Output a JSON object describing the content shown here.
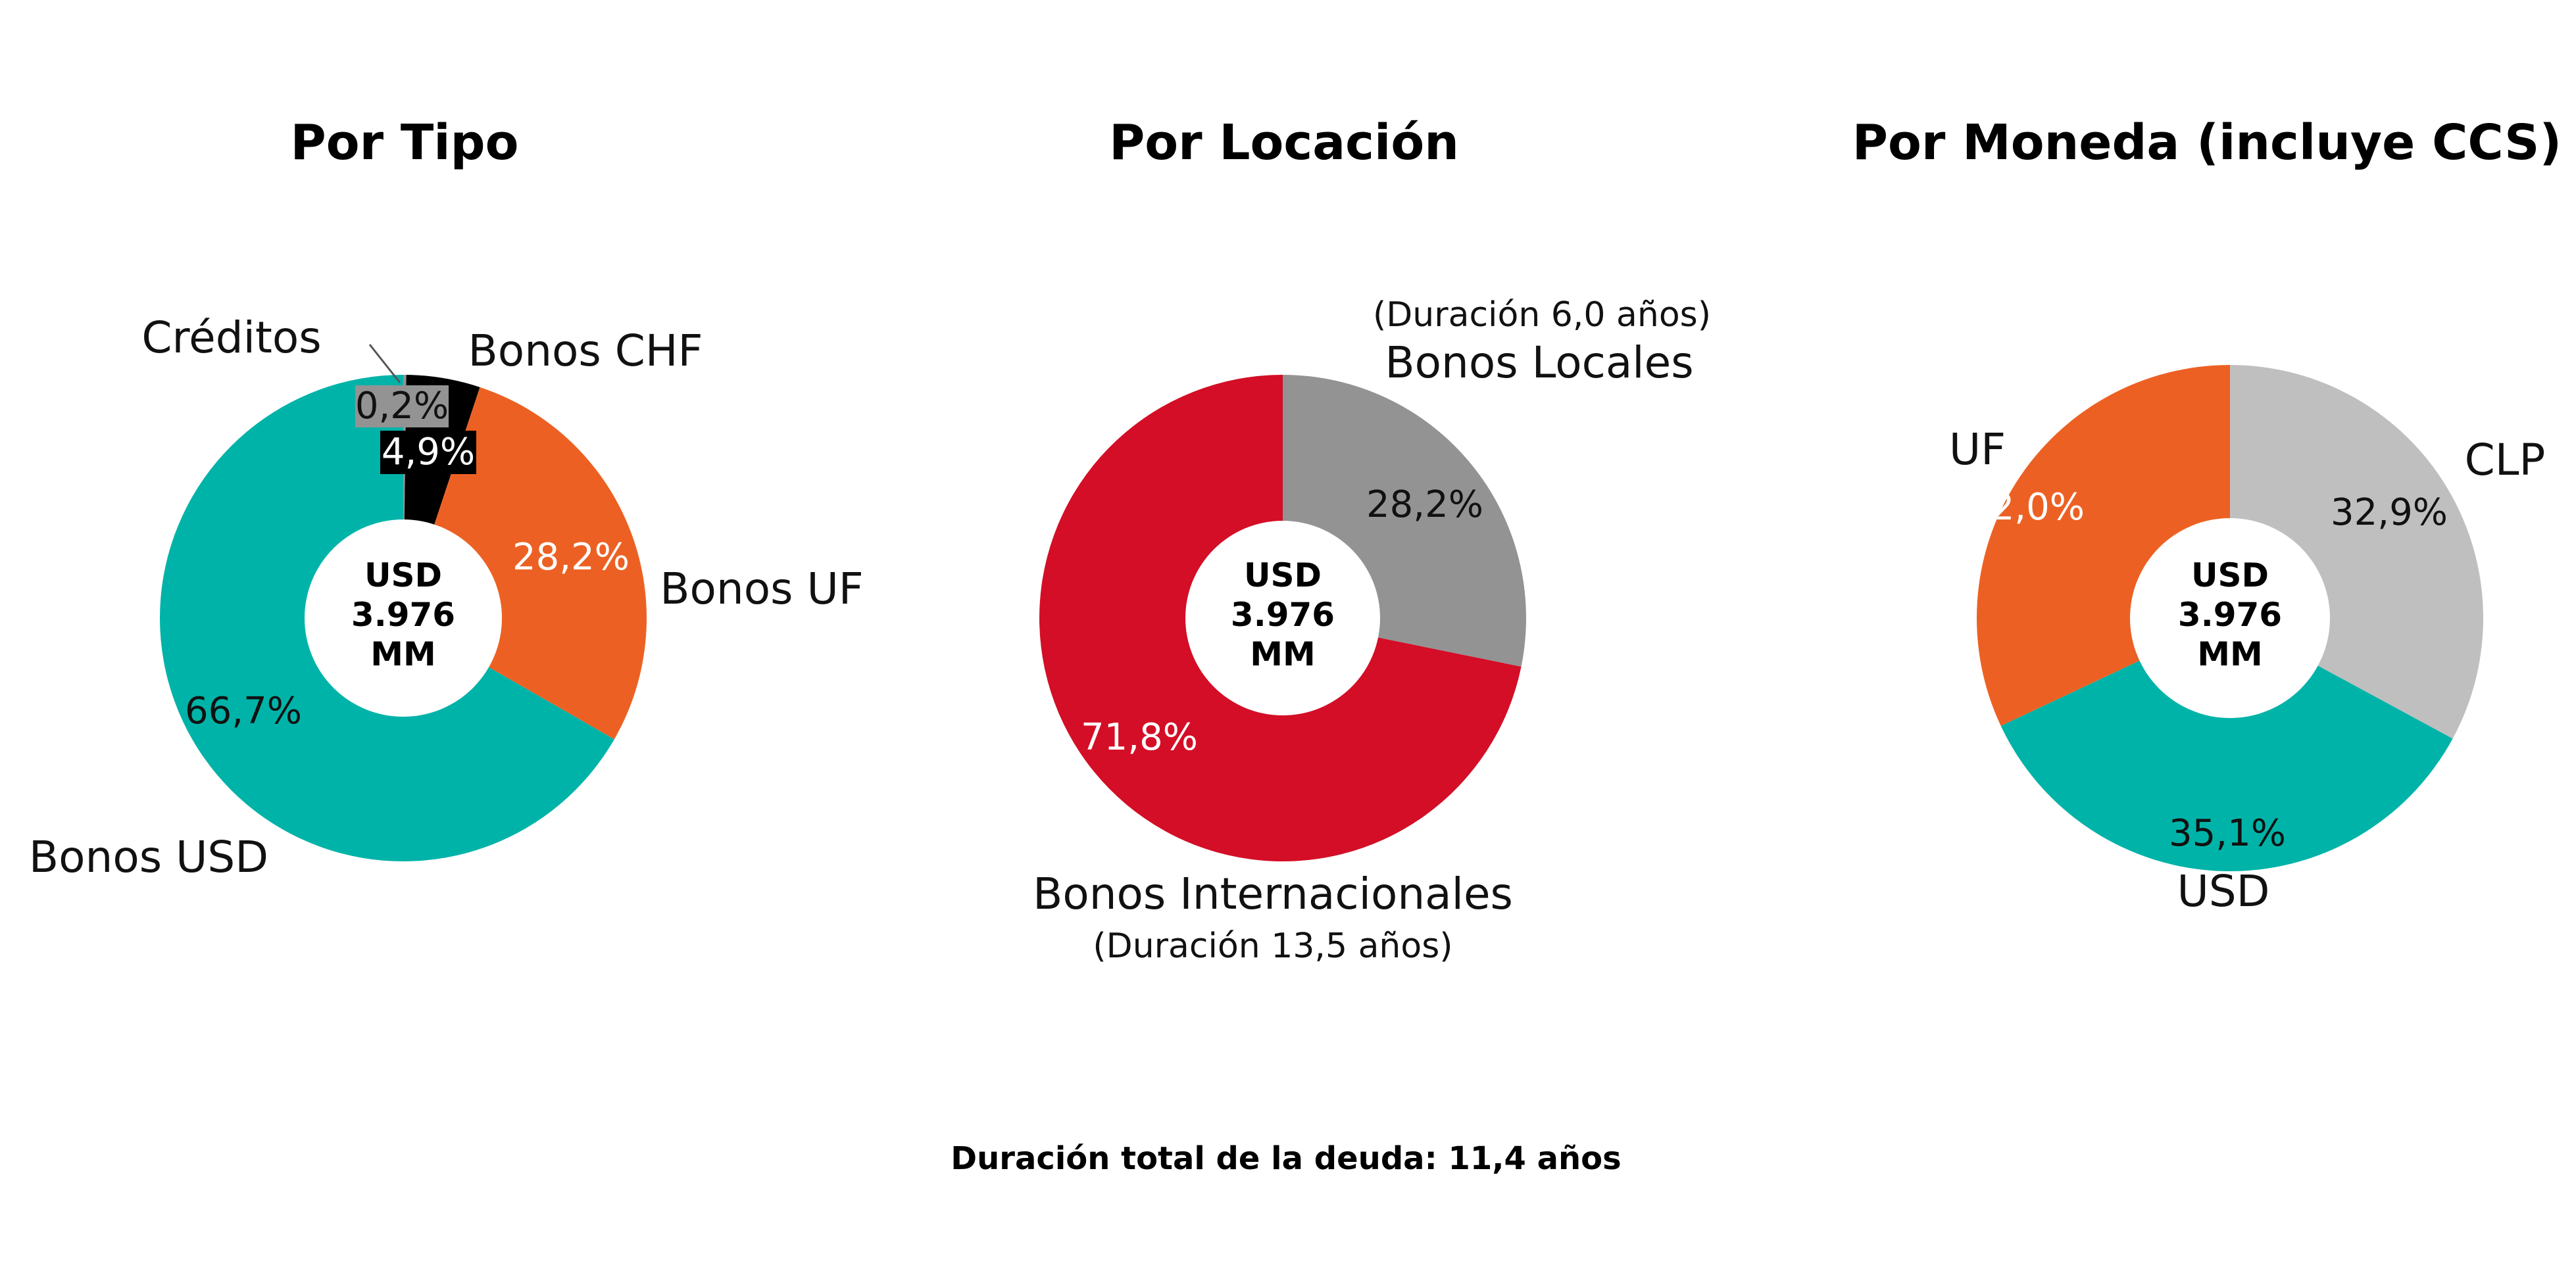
{
  "center_text": {
    "line1": "USD",
    "line2": "3.976",
    "line3": "MM"
  },
  "footer": "Duración total de la deuda: 11,4 años",
  "colors": {
    "teal": "#00B3A8",
    "orange": "#EC6123",
    "black": "#000000",
    "gray": "#939393",
    "red": "#D30E26",
    "lightgray": "#BFBFBF"
  },
  "chart_data": [
    {
      "type": "pie",
      "title": "Por Tipo",
      "donut": true,
      "slices": [
        {
          "label": "Créditos",
          "value": 0.2,
          "value_label": "0,2%",
          "color": "#939393"
        },
        {
          "label": "Bonos CHF",
          "value": 4.9,
          "value_label": "4,9%",
          "color": "#000000"
        },
        {
          "label": "Bonos UF",
          "value": 28.2,
          "value_label": "28,2%",
          "color": "#EC6123"
        },
        {
          "label": "Bonos USD",
          "value": 66.7,
          "value_label": "66,7%",
          "color": "#00B3A8"
        }
      ]
    },
    {
      "type": "pie",
      "title": "Por Locación",
      "donut": true,
      "slices": [
        {
          "label": "Bonos Locales",
          "note": "(Duración 6,0 años)",
          "value": 28.2,
          "value_label": "28,2%",
          "color": "#939393"
        },
        {
          "label": "Bonos Internacionales",
          "note": "(Duración 13,5 años)",
          "value": 71.8,
          "value_label": "71,8%",
          "color": "#D30E26"
        }
      ]
    },
    {
      "type": "pie",
      "title": "Por Moneda (incluye CCS)",
      "donut": true,
      "slices": [
        {
          "label": "CLP",
          "value": 32.9,
          "value_label": "32,9%",
          "color": "#BFBFBF"
        },
        {
          "label": "USD",
          "value": 35.1,
          "value_label": "35,1%",
          "color": "#00B3A8"
        },
        {
          "label": "UF",
          "value": 32.0,
          "value_label": "32,0%",
          "color": "#EC6123"
        }
      ]
    }
  ]
}
